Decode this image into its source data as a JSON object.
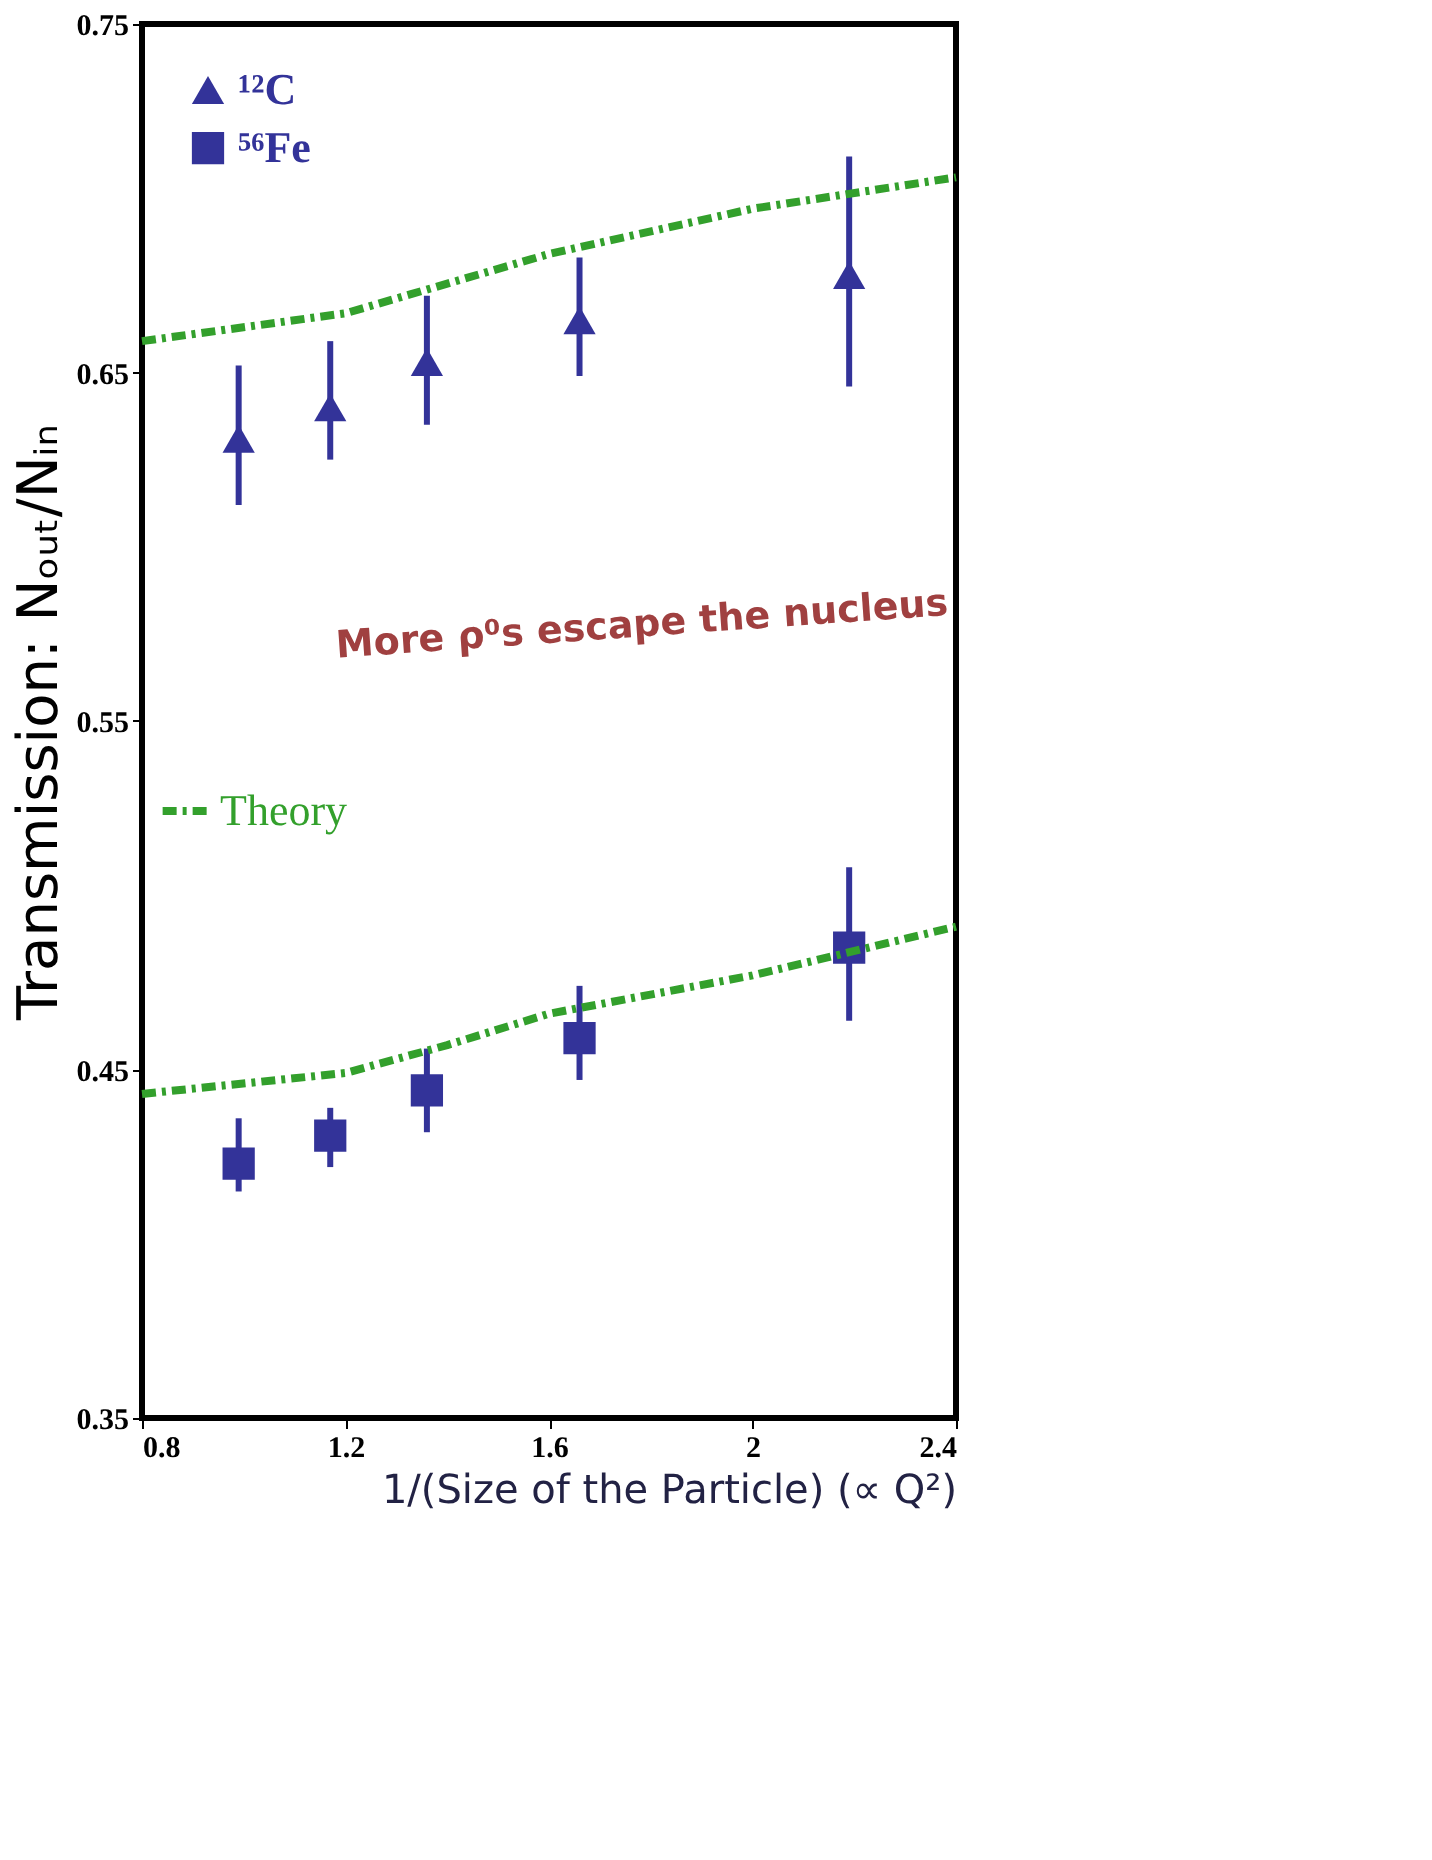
{
  "chart_data": {
    "type": "scatter",
    "xlabel": "1/(Size of the Particle) (∝ Q²)",
    "ylabel": "Transmission: Nₒᵤₜ/Nᵢₙ",
    "xlim": [
      0.8,
      2.4
    ],
    "xticks": [
      0.8,
      1.2,
      1.6,
      2,
      2.4
    ],
    "ylim": [
      0.35,
      0.75
    ],
    "yticks": [
      0.35,
      0.45,
      0.55,
      0.65,
      0.75
    ],
    "grid": false,
    "legend": "top left",
    "annotations": [
      "More ρ⁰s escape the nucleus"
    ],
    "series": [
      {
        "name": "¹²C",
        "marker": "triangle",
        "color": "#333399",
        "x": [
          0.99,
          1.17,
          1.36,
          1.66,
          2.19
        ],
        "values": [
          0.631,
          0.64,
          0.653,
          0.665,
          0.678
        ],
        "errors": [
          [
            0.612,
            0.652
          ],
          [
            0.625,
            0.659
          ],
          [
            0.635,
            0.672
          ],
          [
            0.649,
            0.683
          ],
          [
            0.646,
            0.712
          ]
        ]
      },
      {
        "name": "⁵⁶Fe",
        "marker": "square",
        "color": "#333399",
        "x": [
          0.99,
          1.17,
          1.36,
          1.66,
          2.19
        ],
        "values": [
          0.423,
          0.431,
          0.444,
          0.459,
          0.485
        ],
        "errors": [
          [
            0.415,
            0.436
          ],
          [
            0.422,
            0.439
          ],
          [
            0.432,
            0.456
          ],
          [
            0.447,
            0.474
          ],
          [
            0.464,
            0.508
          ]
        ]
      },
      {
        "name": "Theory",
        "type": "line",
        "line_style": "dashed",
        "marker": "none",
        "color": "#33a02c",
        "x": [
          0.8,
          1.2,
          1.6,
          2.0,
          2.4
        ],
        "values": [
          0.659,
          0.667,
          0.684,
          0.697,
          0.706
        ]
      },
      {
        "type": "line",
        "line_style": "dashed",
        "marker": "none",
        "color": "#33a02c",
        "x": [
          0.8,
          1.2,
          1.4,
          1.6,
          2.0,
          2.4
        ],
        "values": [
          0.443,
          0.449,
          0.457,
          0.466,
          0.477,
          0.491
        ]
      }
    ]
  }
}
